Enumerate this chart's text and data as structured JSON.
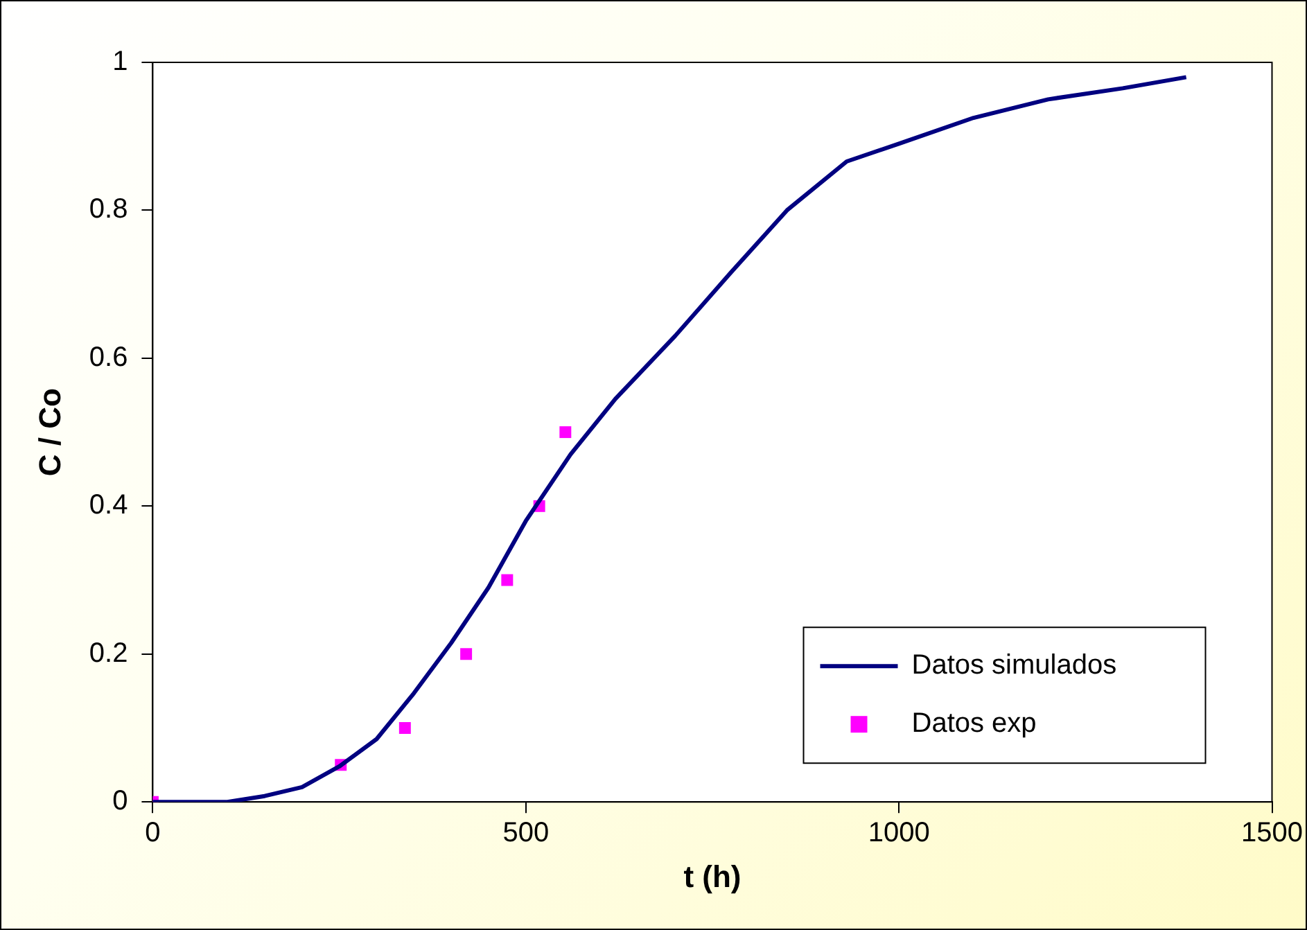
{
  "chart_data": {
    "type": "line",
    "xlabel": "t (h)",
    "ylabel": "C / Co",
    "xlim": [
      0,
      1500
    ],
    "xticks": [
      0,
      500,
      1000,
      1500
    ],
    "ylim": [
      0,
      1
    ],
    "yticks": [
      0,
      0.2,
      0.4,
      0.6,
      0.8,
      1
    ],
    "grid": false,
    "legend": "bottom right",
    "series": [
      {
        "name": "Datos simulados",
        "color": "#000080",
        "marker": "none",
        "line_style": "solid",
        "x": [
          0,
          100,
          150,
          200,
          250,
          300,
          350,
          400,
          450,
          500,
          560,
          620,
          700,
          775,
          850,
          930,
          1000,
          1100,
          1200,
          1300,
          1385
        ],
        "values": [
          0,
          0,
          0.008,
          0.02,
          0.048,
          0.085,
          0.147,
          0.215,
          0.29,
          0.38,
          0.47,
          0.545,
          0.63,
          0.716,
          0.8,
          0.866,
          0.89,
          0.925,
          0.95,
          0.965,
          0.98
        ]
      },
      {
        "name": "Datos exp",
        "type": "scatter",
        "color": "#ff00ff",
        "marker": "square",
        "x": [
          0,
          252,
          338,
          420,
          475,
          518,
          553
        ],
        "values": [
          0,
          0.05,
          0.1,
          0.2,
          0.3,
          0.4,
          0.5
        ]
      }
    ]
  }
}
